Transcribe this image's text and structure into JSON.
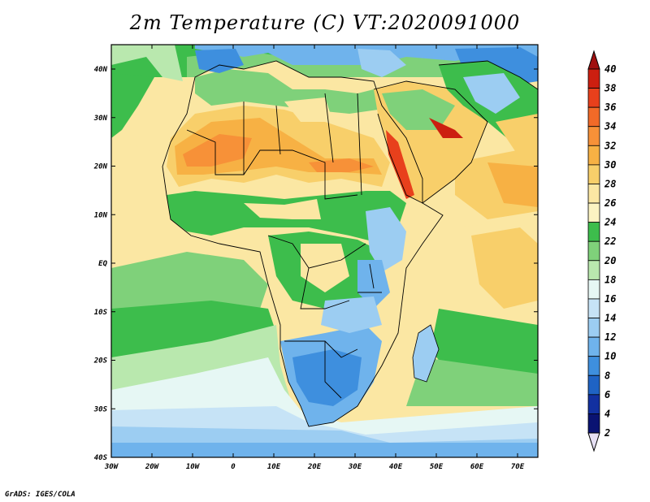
{
  "title": "2m Temperature (C) VT:2020091000",
  "credit": "GrADS: IGES/COLA",
  "map": {
    "lat_labels": [
      "40N",
      "30N",
      "20N",
      "10N",
      "EQ",
      "10S",
      "20S",
      "30S",
      "40S"
    ],
    "lon_labels": [
      "30W",
      "20W",
      "10W",
      "0",
      "10E",
      "20E",
      "30E",
      "40E",
      "50E",
      "60E",
      "70E"
    ]
  },
  "colorbar": {
    "levels": [
      "40",
      "38",
      "36",
      "34",
      "32",
      "30",
      "28",
      "26",
      "24",
      "22",
      "20",
      "18",
      "16",
      "14",
      "12",
      "10",
      "8",
      "6",
      "4",
      "2"
    ],
    "colors": [
      "#a01010",
      "#cc1f10",
      "#e8401c",
      "#f26a28",
      "#f79138",
      "#f7b144",
      "#f8cf6a",
      "#fbe7a3",
      "#fbf3c2",
      "#3dbd4c",
      "#7fd17a",
      "#b9e8ae",
      "#e6f7f4",
      "#c6e3f6",
      "#9ccdf2",
      "#6fb3ec",
      "#3e8fde",
      "#1f63c4",
      "#1230a0",
      "#0a1372"
    ],
    "top_arrow_color": "#a01010",
    "bottom_arrow_color": "#e6e0f4"
  }
}
